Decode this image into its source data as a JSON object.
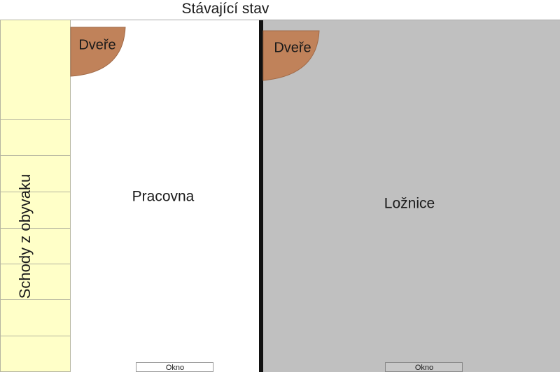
{
  "title": "Stávající stav",
  "stairs": {
    "label": "Schody z obyvaku"
  },
  "rooms": [
    {
      "label": "Pracovna",
      "door": "Dveře",
      "window": "Okno"
    },
    {
      "label": "Ložnice",
      "door": "Dveře",
      "window": "Okno"
    }
  ]
}
